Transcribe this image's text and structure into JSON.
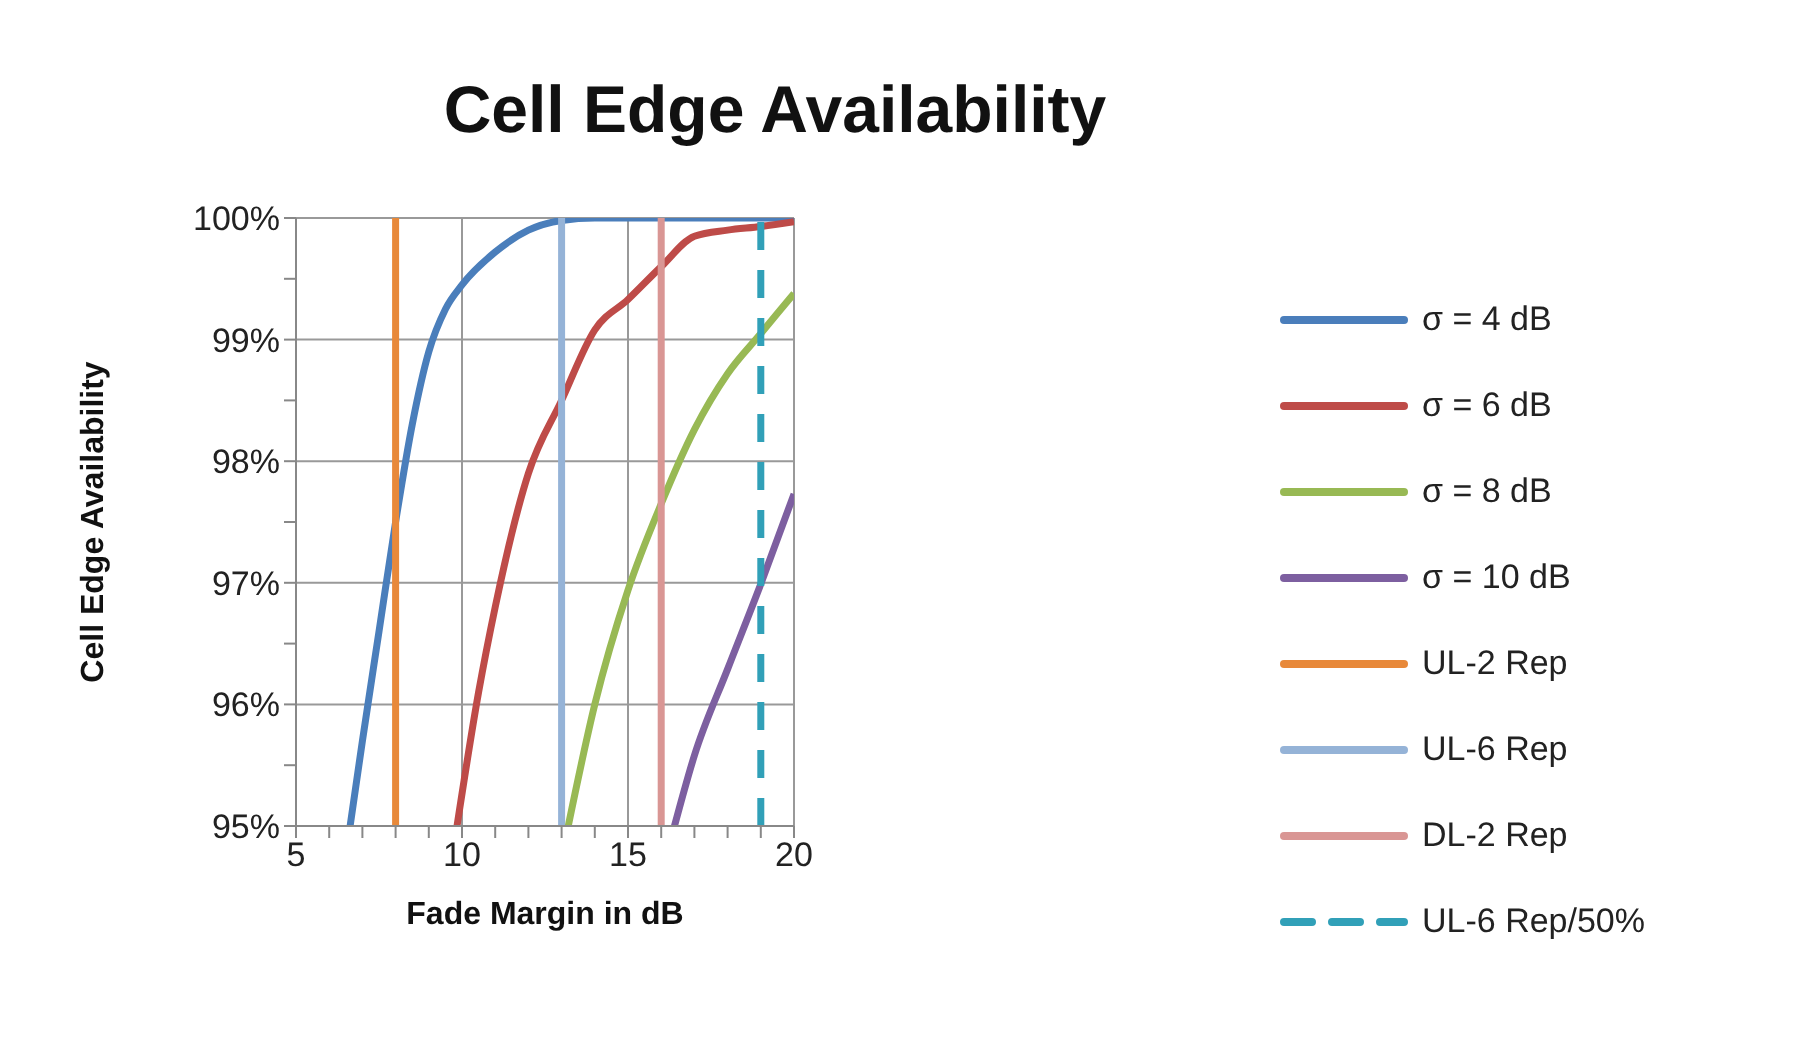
{
  "chart_data": {
    "type": "line",
    "title": "Cell Edge Availability",
    "xlabel": "Fade Margin in dB",
    "ylabel": "Cell Edge Availability",
    "xlim": [
      5,
      20
    ],
    "xticks": [
      5,
      {
        "value": 6,
        "label": null
      },
      {
        "value": 7,
        "label": null
      },
      {
        "value": 8,
        "label": null
      },
      {
        "value": 9,
        "label": null
      },
      10,
      {
        "value": 11,
        "label": null
      },
      {
        "value": 12,
        "label": null
      },
      {
        "value": 13,
        "label": null
      },
      {
        "value": 14,
        "label": null
      },
      15,
      {
        "value": 16,
        "label": null
      },
      {
        "value": 17,
        "label": null
      },
      {
        "value": 18,
        "label": null
      },
      {
        "value": 19,
        "label": null
      },
      20
    ],
    "ylim": [
      95,
      100
    ],
    "yticks": [
      {
        "value": 95,
        "label": "95%"
      },
      {
        "value": 95.5,
        "label": null
      },
      {
        "value": 96,
        "label": "96%"
      },
      {
        "value": 96.5,
        "label": null
      },
      {
        "value": 97,
        "label": "97%"
      },
      {
        "value": 97.5,
        "label": null
      },
      {
        "value": 98,
        "label": "98%"
      },
      {
        "value": 98.5,
        "label": null
      },
      {
        "value": 99,
        "label": "99%"
      },
      {
        "value": 99.5,
        "label": null
      },
      {
        "value": 100,
        "label": "100%"
      }
    ],
    "grid": true,
    "legend": "right",
    "marker": "none",
    "series": [
      {
        "name": "σ = 4 dB",
        "color": "#4a7ebb",
        "x": [
          6.63,
          7,
          7.5,
          8,
          8.5,
          9,
          9.5,
          10,
          11,
          12,
          13,
          14,
          20
        ],
        "values": [
          95,
          95.7,
          96.6,
          97.5,
          98.3,
          98.9,
          99.25,
          99.45,
          99.72,
          99.9,
          99.98,
          100,
          100
        ]
      },
      {
        "name": "σ = 6 dB",
        "color": "#be4b48",
        "x": [
          9.85,
          10.5,
          11,
          12,
          13,
          14,
          15,
          16,
          17,
          18,
          19,
          20
        ],
        "values": [
          95,
          96.1,
          96.8,
          97.9,
          98.5,
          99.08,
          99.33,
          99.6,
          99.85,
          99.9,
          99.93,
          99.97
        ]
      },
      {
        "name": "σ = 8 dB",
        "color": "#98b954",
        "x": [
          13.2,
          14,
          15,
          16,
          17,
          18,
          19,
          20
        ],
        "values": [
          95,
          96,
          96.94,
          97.65,
          98.26,
          98.72,
          99.05,
          99.38
        ]
      },
      {
        "name": "σ = 10 dB",
        "color": "#7d5fa0",
        "x": [
          16.4,
          17,
          18,
          19,
          20
        ],
        "values": [
          95,
          95.58,
          96.29,
          96.99,
          97.73
        ]
      },
      {
        "name": "UL-2 Rep",
        "color": "#e8893a",
        "x": [
          8,
          8
        ],
        "values": [
          95,
          100
        ]
      },
      {
        "name": "UL-6 Rep",
        "color": "#95b3d7",
        "x": [
          13,
          13
        ],
        "values": [
          95,
          100
        ]
      },
      {
        "name": "DL-2 Rep",
        "color": "#d99694",
        "x": [
          16,
          16
        ],
        "values": [
          95,
          100
        ]
      },
      {
        "name": "UL-6 Rep/50%",
        "color": "#31a0b8",
        "x": [
          19,
          19
        ],
        "values": [
          95,
          100
        ],
        "line_style": "dashed"
      }
    ]
  }
}
